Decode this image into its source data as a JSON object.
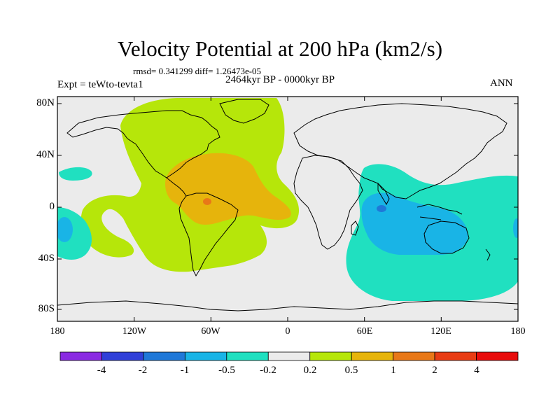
{
  "title": "Velocity Potential at 200 hPa (km2/s)",
  "stats_line": "rmsd= 0.341299 diff= 1.26473e-05",
  "period_line": "2464kyr BP - 0000kyr BP",
  "experiment_label": "Expt = teWto-tevta1",
  "season_label": "ANN",
  "latitude_ticks": [
    "80N",
    "40N",
    "0",
    "40S",
    "80S"
  ],
  "longitude_ticks": [
    "180",
    "120W",
    "60W",
    "0",
    "60E",
    "120E",
    "180"
  ],
  "colorbar": {
    "labels": [
      "-4",
      "-2",
      "-1",
      "-0.5",
      "-0.2",
      "0.2",
      "0.5",
      "1",
      "2",
      "4"
    ],
    "colors": [
      "#8a2be2",
      "#3040d8",
      "#1f78d8",
      "#19b4e6",
      "#20e0c0",
      "#ebebeb",
      "#b6e60a",
      "#e6b40c",
      "#e87818",
      "#e83c14",
      "#e80c0c"
    ]
  },
  "colors": {
    "land_background": "#ebebeb",
    "positive_weak": "#b6e60a",
    "positive_moderate": "#e6b40c",
    "positive_strong": "#e87818",
    "negative_weak": "#20e0c0",
    "negative_moderate": "#19b4e6",
    "negative_strong": "#1f78d8"
  }
}
